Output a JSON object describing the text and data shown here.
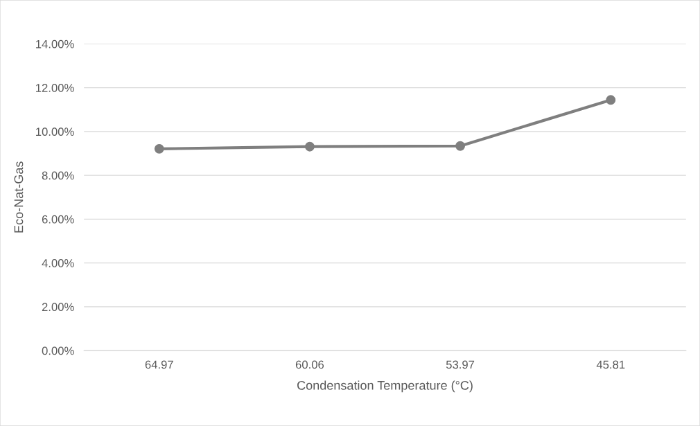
{
  "chart_data": {
    "type": "line",
    "xlabel": "Condensation Temperature (°C)",
    "ylabel": "Eco-Nat-Gas",
    "categories": [
      "64.97",
      "60.06",
      "53.97",
      "45.81"
    ],
    "series": [
      {
        "color": "#7f7f7f",
        "values": [
          9.21,
          9.31,
          9.34,
          11.44
        ]
      }
    ],
    "ylim": [
      0,
      14
    ],
    "yticks": [
      {
        "value": 0,
        "label": "0.00%"
      },
      {
        "value": 2,
        "label": "2.00%"
      },
      {
        "value": 4,
        "label": "4.00%"
      },
      {
        "value": 6,
        "label": "6.00%"
      },
      {
        "value": 8,
        "label": "8.00%"
      },
      {
        "value": 10,
        "label": "10.00%"
      },
      {
        "value": 12,
        "label": "12.00%"
      },
      {
        "value": 14,
        "label": "14.00%"
      }
    ],
    "grid": "y",
    "marker": "circle",
    "line_style": "solid"
  }
}
